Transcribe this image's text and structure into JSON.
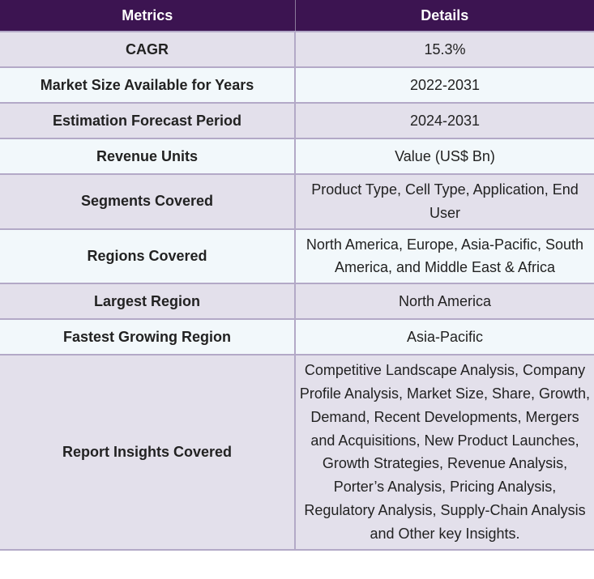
{
  "header": {
    "metrics_label": "Metrics",
    "details_label": "Details"
  },
  "rows": [
    {
      "metric": "CAGR",
      "detail": "15.3%"
    },
    {
      "metric": "Market Size Available for Years",
      "detail": "2022-2031"
    },
    {
      "metric": "Estimation Forecast Period",
      "detail": "2024-2031"
    },
    {
      "metric": "Revenue Units",
      "detail": "Value (US$ Bn)"
    },
    {
      "metric": "Segments Covered",
      "detail": "Product Type, Cell Type, Application, End User"
    },
    {
      "metric": "Regions Covered",
      "detail": "North America, Europe, Asia-Pacific, South America, and Middle East & Africa"
    },
    {
      "metric": "Largest Region",
      "detail": "North America"
    },
    {
      "metric": "Fastest Growing Region",
      "detail": "Asia-Pacific"
    },
    {
      "metric": "Report Insights Covered",
      "detail": "Competitive Landscape Analysis, Company Profile Analysis, Market Size, Share, Growth, Demand, Recent Developments, Mergers and Acquisitions, New Product Launches, Growth Strategies, Revenue Analysis, Porter’s Analysis, Pricing Analysis, Regulatory Analysis, Supply-Chain Analysis and Other key Insights."
    }
  ],
  "colors": {
    "header_bg": "#3c1451",
    "row_odd": "#e3e0eb",
    "row_even": "#f2f8fb",
    "border": "#b3a9c7"
  }
}
